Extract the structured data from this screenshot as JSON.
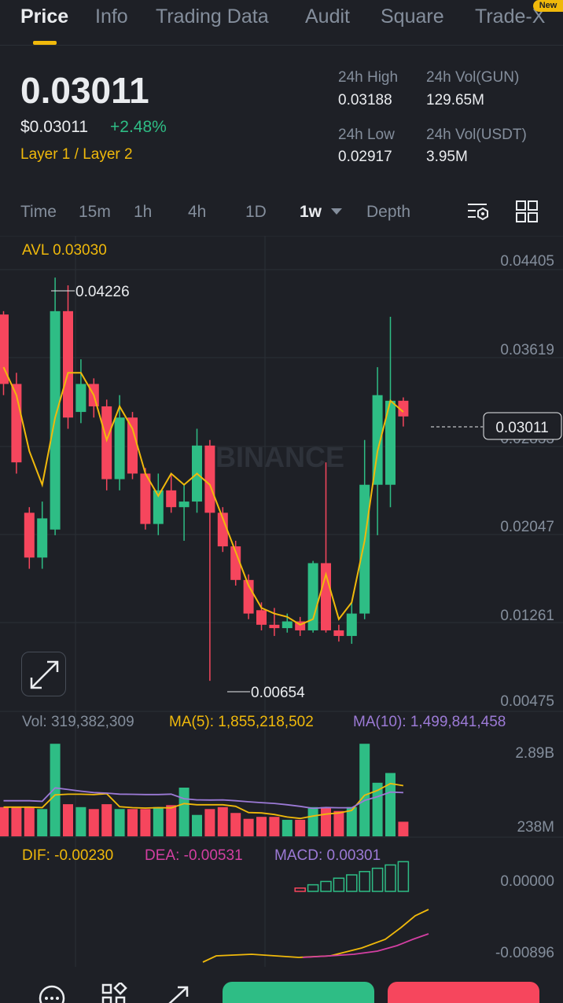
{
  "tabs": [
    {
      "label": "Price",
      "active": true
    },
    {
      "label": "Info"
    },
    {
      "label": "Trading Data"
    },
    {
      "label": "Audit"
    },
    {
      "label": "Square"
    },
    {
      "label": "Trade-X"
    }
  ],
  "badge_new": "New",
  "price": {
    "last": "0.03011",
    "usd": "$0.03011",
    "change": "+2.48%",
    "category": "Layer 1 / Layer 2"
  },
  "stats": {
    "high_label": "24h High",
    "high_value": "0.03188",
    "vol_gun_label": "24h Vol(GUN)",
    "vol_gun_value": "129.65M",
    "low_label": "24h Low",
    "low_value": "0.02917",
    "vol_usdt_label": "24h Vol(USDT)",
    "vol_usdt_value": "3.95M"
  },
  "intervals": [
    "Time",
    "15m",
    "1h",
    "4h",
    "1D",
    "1w",
    "Depth"
  ],
  "selected_interval": "1w",
  "tools": {
    "settings_icon": "chart-settings-icon",
    "layout_icon": "grid-layout-icon"
  },
  "colors": {
    "up": "#2ebd85",
    "down": "#f6465d",
    "accent": "#f0b90b",
    "ma10": "#9c7ad6",
    "dea": "#d33fa2"
  },
  "watermark": "BINANCE",
  "main_chart": {
    "avl": "AVL 0.03030",
    "y_labels": [
      "0.04405",
      "0.03619",
      "0.02833",
      "0.02047",
      "0.01261",
      "0.00475"
    ],
    "current_price_tag": "0.03011",
    "max_label": "0.04226",
    "min_label": "0.00654"
  },
  "chart_data": {
    "type": "candlestick",
    "ylim": [
      0.00475,
      0.04405
    ],
    "candles": [
      {
        "o": 0.0392,
        "h": 0.0395,
        "c": 0.033,
        "l": 0.032
      },
      {
        "o": 0.033,
        "h": 0.034,
        "c": 0.026,
        "l": 0.025
      },
      {
        "o": 0.0215,
        "h": 0.022,
        "c": 0.0175,
        "l": 0.0165
      },
      {
        "o": 0.0175,
        "h": 0.0225,
        "c": 0.021,
        "l": 0.0165
      },
      {
        "o": 0.02,
        "h": 0.0425,
        "c": 0.0395,
        "l": 0.0195
      },
      {
        "o": 0.0395,
        "h": 0.0418,
        "c": 0.03,
        "l": 0.029
      },
      {
        "o": 0.0305,
        "h": 0.0352,
        "c": 0.033,
        "l": 0.0295
      },
      {
        "o": 0.033,
        "h": 0.0335,
        "c": 0.031,
        "l": 0.03
      },
      {
        "o": 0.031,
        "h": 0.0316,
        "c": 0.0245,
        "l": 0.0235
      },
      {
        "o": 0.0245,
        "h": 0.032,
        "c": 0.03,
        "l": 0.0235
      },
      {
        "o": 0.03,
        "h": 0.0305,
        "c": 0.025,
        "l": 0.0245
      },
      {
        "o": 0.025,
        "h": 0.0255,
        "c": 0.0205,
        "l": 0.02
      },
      {
        "o": 0.0205,
        "h": 0.025,
        "c": 0.0235,
        "l": 0.0195
      },
      {
        "o": 0.0235,
        "h": 0.025,
        "c": 0.022,
        "l": 0.0215
      },
      {
        "o": 0.022,
        "h": 0.024,
        "c": 0.0225,
        "l": 0.019
      },
      {
        "o": 0.0225,
        "h": 0.029,
        "c": 0.0275,
        "l": 0.0215
      },
      {
        "o": 0.0275,
        "h": 0.028,
        "c": 0.0215,
        "l": 0.0065
      },
      {
        "o": 0.0215,
        "h": 0.022,
        "c": 0.0185,
        "l": 0.018
      },
      {
        "o": 0.0185,
        "h": 0.019,
        "c": 0.0155,
        "l": 0.015
      },
      {
        "o": 0.0155,
        "h": 0.016,
        "c": 0.0125,
        "l": 0.012
      },
      {
        "o": 0.0128,
        "h": 0.0135,
        "c": 0.0115,
        "l": 0.011
      },
      {
        "o": 0.0115,
        "h": 0.013,
        "c": 0.0112,
        "l": 0.0105
      },
      {
        "o": 0.0112,
        "h": 0.0125,
        "c": 0.0118,
        "l": 0.0108
      },
      {
        "o": 0.0118,
        "h": 0.0122,
        "c": 0.011,
        "l": 0.0105
      },
      {
        "o": 0.011,
        "h": 0.0172,
        "c": 0.017,
        "l": 0.0108
      },
      {
        "o": 0.017,
        "h": 0.026,
        "c": 0.011,
        "l": 0.0108
      },
      {
        "o": 0.011,
        "h": 0.0115,
        "c": 0.0105,
        "l": 0.01
      },
      {
        "o": 0.0105,
        "h": 0.0135,
        "c": 0.0125,
        "l": 0.0098
      },
      {
        "o": 0.0125,
        "h": 0.028,
        "c": 0.024,
        "l": 0.012
      },
      {
        "o": 0.024,
        "h": 0.0345,
        "c": 0.032,
        "l": 0.0195
      },
      {
        "o": 0.024,
        "h": 0.039,
        "c": 0.0315,
        "l": 0.022
      },
      {
        "o": 0.0315,
        "h": 0.0318,
        "c": 0.0301,
        "l": 0.0292
      }
    ],
    "ma_line": [
      0.0345,
      0.032,
      0.027,
      0.024,
      0.03,
      0.034,
      0.034,
      0.032,
      0.028,
      0.031,
      0.029,
      0.025,
      0.023,
      0.025,
      0.024,
      0.025,
      0.024,
      0.021,
      0.018,
      0.015,
      0.013,
      0.0125,
      0.0122,
      0.0115,
      0.012,
      0.016,
      0.012,
      0.0135,
      0.019,
      0.027,
      0.0315,
      0.0305
    ]
  },
  "volume": {
    "vol_label": "Vol: 319,382,309",
    "ma5_label": "MA(5): 1,855,218,502",
    "ma10_label": "MA(10): 1,499,841,458",
    "y_top": "2.89B",
    "y_bottom": "238M",
    "bars": [
      0.3,
      0.3,
      0.3,
      0.28,
      0.95,
      0.33,
      0.3,
      0.28,
      0.33,
      0.28,
      0.28,
      0.28,
      0.3,
      0.32,
      0.5,
      0.22,
      0.28,
      0.3,
      0.24,
      0.18,
      0.2,
      0.2,
      0.17,
      0.17,
      0.3,
      0.3,
      0.26,
      0.3,
      0.95,
      0.55,
      0.65,
      0.15
    ]
  },
  "macd": {
    "dif_label": "DIF: -0.00230",
    "dea_label": "DEA: -0.00531",
    "macd_label": "MACD: 0.00301",
    "y_top": "0.00000",
    "y_bottom": "-0.00896"
  }
}
